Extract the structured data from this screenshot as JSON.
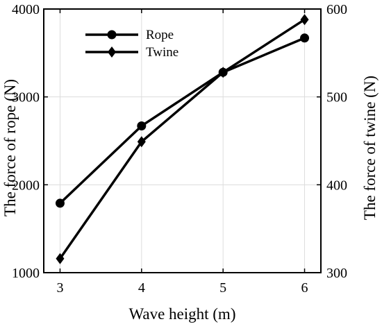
{
  "chart_data": {
    "type": "line",
    "x": [
      3,
      4,
      5,
      6
    ],
    "xlabel": "Wave height (m)",
    "xlim": [
      2.8,
      6.2
    ],
    "xticks": [
      3,
      4,
      5,
      6
    ],
    "ylabel_left": "The force of rope (N)",
    "ylim_left": [
      1000,
      4000
    ],
    "yticks_left": [
      1000,
      2000,
      3000,
      4000
    ],
    "ylabel_right": "The force of twine (N)",
    "ylim_right": [
      300,
      600
    ],
    "yticks_right": [
      300,
      400,
      500,
      600
    ],
    "grid": true,
    "legend_position": "top-left",
    "series": [
      {
        "name": "Rope",
        "axis": "left",
        "marker": "circle",
        "color": "#000000",
        "values": [
          1790,
          2670,
          3280,
          3670
        ]
      },
      {
        "name": "Twine",
        "axis": "right",
        "marker": "diamond",
        "color": "#000000",
        "values": [
          316,
          449,
          528,
          588
        ]
      }
    ]
  }
}
